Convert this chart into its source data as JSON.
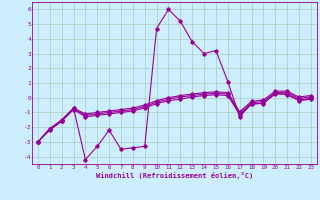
{
  "xlabel": "Windchill (Refroidissement éolien,°C)",
  "bg_color": "#cceeff",
  "line_color": "#990099",
  "grid_color": "#aaccbb",
  "xlim": [
    -0.5,
    23.5
  ],
  "ylim": [
    -4.5,
    6.5
  ],
  "xticks": [
    0,
    1,
    2,
    3,
    4,
    5,
    6,
    7,
    8,
    9,
    10,
    11,
    12,
    13,
    14,
    15,
    16,
    17,
    18,
    19,
    20,
    21,
    22,
    23
  ],
  "yticks": [
    -4,
    -3,
    -2,
    -1,
    0,
    1,
    2,
    3,
    4,
    5,
    6
  ],
  "lines": [
    {
      "x": [
        0,
        1,
        2,
        3,
        4,
        5,
        6,
        7,
        8,
        9,
        10,
        11,
        12,
        13,
        14,
        15,
        16,
        17,
        18,
        19,
        20,
        21,
        22,
        23
      ],
      "y": [
        -3.0,
        -2.2,
        -1.6,
        -0.7,
        -4.2,
        -3.3,
        -2.2,
        -3.5,
        -3.4,
        -3.3,
        4.7,
        6.0,
        5.2,
        3.8,
        3.0,
        3.2,
        1.1,
        -1.3,
        -0.4,
        -0.4,
        0.3,
        0.2,
        -0.2,
        -0.1
      ]
    },
    {
      "x": [
        0,
        1,
        2,
        3,
        4,
        5,
        6,
        7,
        8,
        9,
        10,
        11,
        12,
        13,
        14,
        15,
        16,
        17,
        18,
        19,
        20,
        21,
        22,
        23
      ],
      "y": [
        -3.0,
        -2.1,
        -1.6,
        -0.8,
        -1.3,
        -1.2,
        -1.1,
        -1.0,
        -0.9,
        -0.7,
        -0.4,
        -0.2,
        -0.1,
        0.05,
        0.15,
        0.2,
        0.15,
        -1.15,
        -0.45,
        -0.35,
        0.25,
        0.25,
        -0.15,
        -0.05
      ]
    },
    {
      "x": [
        0,
        1,
        2,
        3,
        4,
        5,
        6,
        7,
        8,
        9,
        10,
        11,
        12,
        13,
        14,
        15,
        16,
        17,
        18,
        19,
        20,
        21,
        22,
        23
      ],
      "y": [
        -3.0,
        -2.1,
        -1.55,
        -0.75,
        -1.2,
        -1.1,
        -1.0,
        -0.9,
        -0.8,
        -0.6,
        -0.3,
        -0.1,
        0.05,
        0.15,
        0.25,
        0.3,
        0.25,
        -1.05,
        -0.35,
        -0.25,
        0.35,
        0.35,
        -0.05,
        0.05
      ]
    },
    {
      "x": [
        0,
        1,
        2,
        3,
        4,
        5,
        6,
        7,
        8,
        9,
        10,
        11,
        12,
        13,
        14,
        15,
        16,
        17,
        18,
        19,
        20,
        21,
        22,
        23
      ],
      "y": [
        -3.0,
        -2.1,
        -1.5,
        -0.7,
        -1.1,
        -1.0,
        -0.9,
        -0.8,
        -0.7,
        -0.5,
        -0.2,
        0.0,
        0.15,
        0.25,
        0.35,
        0.4,
        0.35,
        -0.95,
        -0.25,
        -0.15,
        0.45,
        0.45,
        0.05,
        0.15
      ]
    }
  ]
}
